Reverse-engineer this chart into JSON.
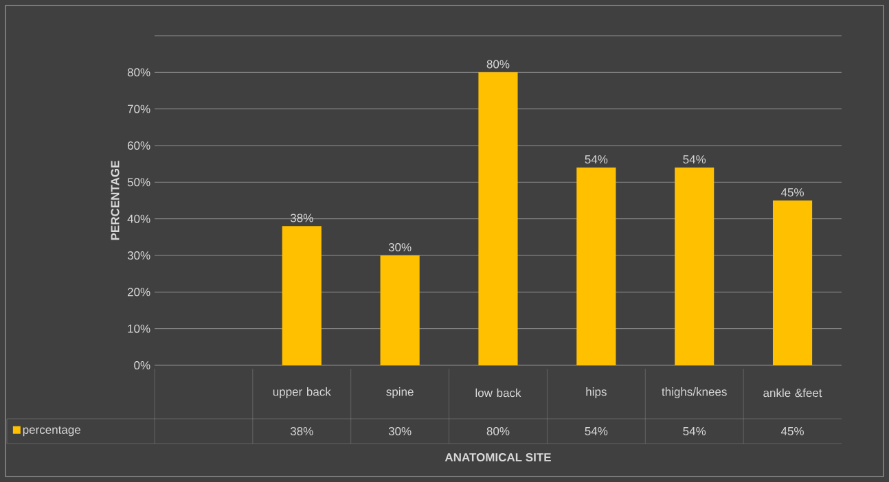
{
  "chart_data": {
    "type": "bar",
    "xlabel": "ANATOMICAL SITE",
    "ylabel": "PERCENTAGE",
    "categories": [
      "upper back",
      "spine",
      "low back",
      "hips",
      "thighs/knees",
      "ankle &feet"
    ],
    "series": [
      {
        "name": "percentage",
        "color": "#ffc000",
        "values": [
          38,
          30,
          80,
          54,
          54,
          45
        ],
        "value_labels": [
          "38%",
          "30%",
          "80%",
          "54%",
          "54%",
          "45%"
        ]
      }
    ],
    "ylim": [
      0,
      90
    ],
    "yticks": [
      {
        "value": 0,
        "label": "0%"
      },
      {
        "value": 10,
        "label": "10%"
      },
      {
        "value": 20,
        "label": "20%"
      },
      {
        "value": 30,
        "label": "30%"
      },
      {
        "value": 40,
        "label": "40%"
      },
      {
        "value": 50,
        "label": "50%"
      },
      {
        "value": 60,
        "label": "60%"
      },
      {
        "value": 70,
        "label": "70%"
      },
      {
        "value": 80,
        "label": "80%"
      },
      {
        "value": 90,
        "label": null
      }
    ],
    "grid": "y",
    "legend": "bottom"
  }
}
